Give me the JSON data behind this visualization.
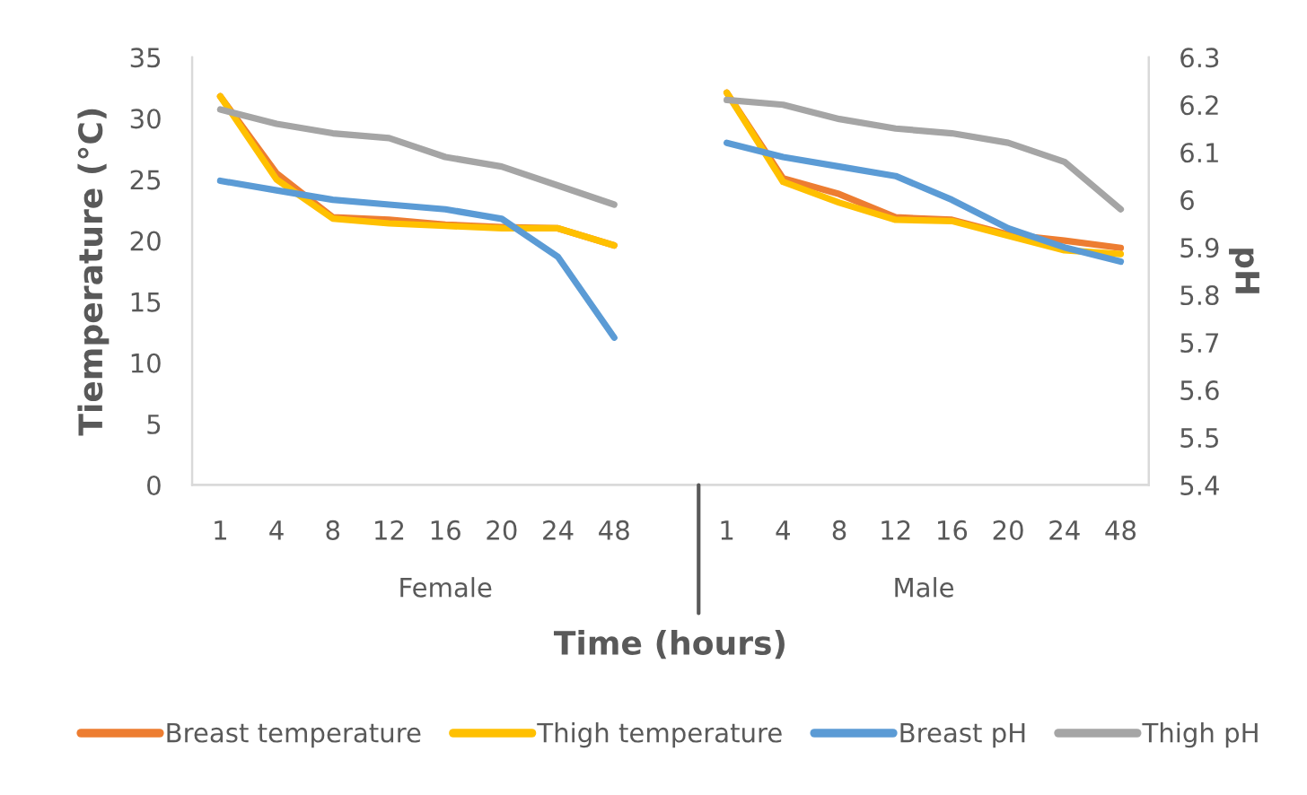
{
  "chart_data": {
    "type": "line",
    "xlabel": "Time (hours)",
    "ylabel": "Tiemperature (°C)",
    "y2label": "pH",
    "categories": [
      "1",
      "4",
      "8",
      "12",
      "16",
      "20",
      "24",
      "48",
      null,
      "1",
      "4",
      "8",
      "12",
      "16",
      "20",
      "24",
      "48"
    ],
    "annotations": [
      "Female",
      "Male"
    ],
    "series": [
      {
        "name": "Breast temperature",
        "color": "#ed7d31",
        "values": [
          31.8,
          25.5,
          21.9,
          21.7,
          21.3,
          21.1,
          21.0,
          19.6,
          null,
          32.1,
          25.1,
          23.8,
          21.9,
          21.7,
          20.5,
          20.0,
          19.4
        ]
      },
      {
        "name": "Thigh temperature",
        "color": "#ffc000",
        "values": [
          31.8,
          25.0,
          21.8,
          21.4,
          21.2,
          21.0,
          21.0,
          19.6,
          null,
          32.1,
          24.8,
          23.1,
          21.7,
          21.6,
          20.4,
          19.2,
          18.9
        ]
      },
      {
        "name": "Breast pH",
        "color": "#5b9bd5",
        "axis": "y2",
        "values": [
          6.04,
          6.02,
          6.0,
          5.99,
          5.98,
          5.96,
          5.88,
          5.71,
          null,
          6.12,
          6.09,
          6.07,
          6.05,
          6.0,
          5.94,
          5.9,
          5.87
        ]
      },
      {
        "name": "Thigh pH",
        "color": "#a5a5a5",
        "axis": "y2",
        "values": [
          6.19,
          6.16,
          6.14,
          6.13,
          6.09,
          6.07,
          6.03,
          5.99,
          null,
          6.21,
          6.2,
          6.17,
          6.15,
          6.14,
          6.12,
          6.08,
          5.98
        ]
      }
    ],
    "ylim": [
      0,
      35
    ],
    "yticks": [
      0,
      5,
      10,
      15,
      20,
      25,
      30,
      35
    ],
    "y2lim": [
      5.4,
      6.3
    ],
    "y2ticks": [
      5.4,
      5.5,
      5.6,
      5.7,
      5.8,
      5.9,
      6,
      6.1,
      6.2,
      6.3
    ],
    "grid": false,
    "legend": "bottom",
    "marker": "none",
    "line_style": "solid"
  }
}
